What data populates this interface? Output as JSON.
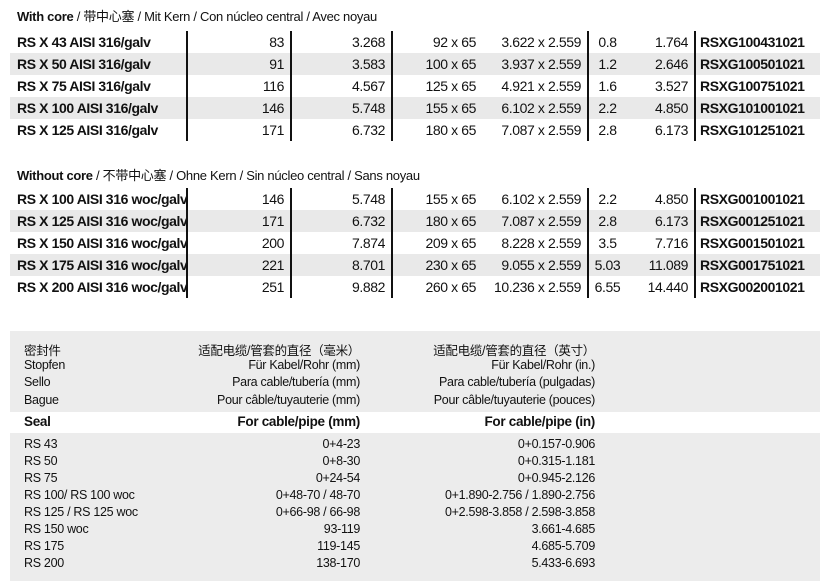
{
  "with_core": {
    "title_bold": "With core",
    "title_rest": " / 带中心塞 / Mit Kern / Con núcleo central / Avec noyau",
    "rows": [
      [
        "RS X 43 AISI 316/galv",
        "83",
        "3.268",
        "92 x 65",
        "3.622 x 2.559",
        "0.8",
        "1.764",
        "RSXG100431021"
      ],
      [
        "RS X 50 AISI 316/galv",
        "91",
        "3.583",
        "100 x 65",
        "3.937 x 2.559",
        "1.2",
        "2.646",
        "RSXG100501021"
      ],
      [
        "RS X 75 AISI 316/galv",
        "116",
        "4.567",
        "125 x 65",
        "4.921 x 2.559",
        "1.6",
        "3.527",
        "RSXG100751021"
      ],
      [
        "RS X 100 AISI 316/galv",
        "146",
        "5.748",
        "155 x 65",
        "6.102 x 2.559",
        "2.2",
        "4.850",
        "RSXG101001021"
      ],
      [
        "RS X 125 AISI 316/galv",
        "171",
        "6.732",
        "180 x 65",
        "7.087 x 2.559",
        "2.8",
        "6.173",
        "RSXG101251021"
      ]
    ]
  },
  "without_core": {
    "title_bold": "Without core",
    "title_rest": " / 不带中心塞 / Ohne Kern / Sin núcleo central / Sans noyau",
    "rows": [
      [
        "RS X 100 AISI 316 woc/galv",
        "146",
        "5.748",
        "155 x 65",
        "6.102 x 2.559",
        "2.2",
        "4.850",
        "RSXG001001021"
      ],
      [
        "RS X 125 AISI 316 woc/galv",
        "171",
        "6.732",
        "180 x 65",
        "7.087 x 2.559",
        "2.8",
        "6.173",
        "RSXG001251021"
      ],
      [
        "RS X 150 AISI 316 woc/galv",
        "200",
        "7.874",
        "209 x 65",
        "8.228 x 2.559",
        "3.5",
        "7.716",
        "RSXG001501021"
      ],
      [
        "RS X 175 AISI 316 woc/galv",
        "221",
        "8.701",
        "230 x 65",
        "9.055 x 2.559",
        "5.03",
        "11.089",
        "RSXG001751021"
      ],
      [
        "RS X 200 AISI 316 woc/galv",
        "251",
        "9.882",
        "260 x 65",
        "10.236 x 2.559",
        "6.55",
        "14.440",
        "RSXG002001021"
      ]
    ]
  },
  "seal_table": {
    "headers": [
      [
        "密封件",
        "适配电缆/管套的直径（毫米）",
        "适配电缆/管套的直径（英寸）"
      ],
      [
        "Stopfen",
        "Für Kabel/Rohr (mm)",
        "Für Kabel/Rohr (in.)"
      ],
      [
        "Sello",
        "Para cable/tubería (mm)",
        "Para cable/tubería (pulgadas)"
      ],
      [
        "Bague",
        "Pour câble/tuyauterie (mm)",
        "Pour câble/tuyauterie (pouces)"
      ]
    ],
    "main_header": [
      "Seal",
      "For cable/pipe (mm)",
      "For cable/pipe (in)"
    ],
    "rows": [
      [
        "RS 43",
        "0+4-23",
        "0+0.157-0.906"
      ],
      [
        "RS 50",
        "0+8-30",
        "0+0.315-1.181"
      ],
      [
        "RS 75",
        "0+24-54",
        "0+0.945-2.126"
      ],
      [
        "RS 100/ RS 100 woc",
        "0+48-70 / 48-70",
        "0+1.890-2.756 / 1.890-2.756"
      ],
      [
        "RS 125 / RS 125 woc",
        "0+66-98 / 66-98",
        "0+2.598-3.858 / 2.598-3.858"
      ],
      [
        "RS 150 woc",
        "93-119",
        "3.661-4.685"
      ],
      [
        "RS 175",
        "119-145",
        "4.685-5.709"
      ],
      [
        "RS 200",
        "138-170",
        "5.433-6.693"
      ]
    ]
  }
}
